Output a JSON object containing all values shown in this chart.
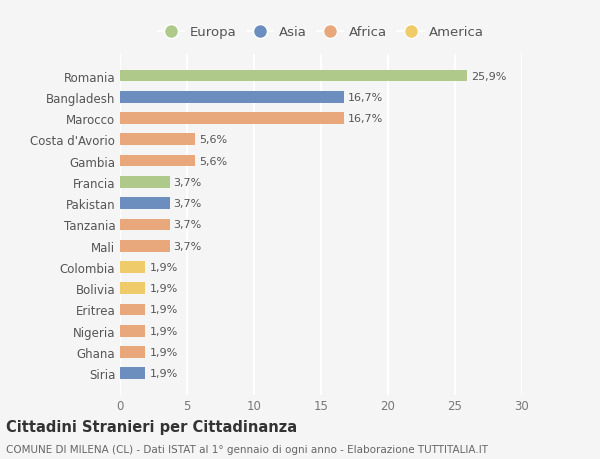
{
  "categories": [
    "Romania",
    "Bangladesh",
    "Marocco",
    "Costa d'Avorio",
    "Gambia",
    "Francia",
    "Pakistan",
    "Tanzania",
    "Mali",
    "Colombia",
    "Bolivia",
    "Eritrea",
    "Nigeria",
    "Ghana",
    "Siria"
  ],
  "values": [
    25.9,
    16.7,
    16.7,
    5.6,
    5.6,
    3.7,
    3.7,
    3.7,
    3.7,
    1.9,
    1.9,
    1.9,
    1.9,
    1.9,
    1.9
  ],
  "labels": [
    "25,9%",
    "16,7%",
    "16,7%",
    "5,6%",
    "5,6%",
    "3,7%",
    "3,7%",
    "3,7%",
    "3,7%",
    "1,9%",
    "1,9%",
    "1,9%",
    "1,9%",
    "1,9%",
    "1,9%"
  ],
  "colors": [
    "#aec98a",
    "#6b8ebf",
    "#e8a87c",
    "#e8a87c",
    "#e8a87c",
    "#aec98a",
    "#6b8ebf",
    "#e8a87c",
    "#e8a87c",
    "#f0cb6a",
    "#f0cb6a",
    "#e8a87c",
    "#e8a87c",
    "#e8a87c",
    "#6b8ebf"
  ],
  "legend_labels": [
    "Europa",
    "Asia",
    "Africa",
    "America"
  ],
  "legend_colors": [
    "#aec98a",
    "#6b8ebf",
    "#e8a87c",
    "#f0cb6a"
  ],
  "title": "Cittadini Stranieri per Cittadinanza",
  "subtitle": "COMUNE DI MILENA (CL) - Dati ISTAT al 1° gennaio di ogni anno - Elaborazione TUTTITALIA.IT",
  "xlim": [
    0,
    30
  ],
  "xticks": [
    0,
    5,
    10,
    15,
    20,
    25,
    30
  ],
  "background_color": "#f5f5f5",
  "plot_bg_color": "#f5f5f5",
  "grid_color": "#ffffff",
  "bar_height": 0.55,
  "title_fontsize": 10.5,
  "subtitle_fontsize": 7.5,
  "tick_fontsize": 8.5,
  "label_fontsize": 8.0,
  "legend_fontsize": 9.5
}
